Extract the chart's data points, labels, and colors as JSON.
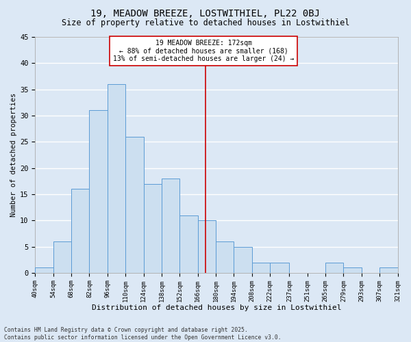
{
  "title": "19, MEADOW BREEZE, LOSTWITHIEL, PL22 0BJ",
  "subtitle": "Size of property relative to detached houses in Lostwithiel",
  "xlabel": "Distribution of detached houses by size in Lostwithiel",
  "ylabel": "Number of detached properties",
  "bar_values": [
    1,
    6,
    16,
    31,
    36,
    26,
    17,
    18,
    11,
    10,
    6,
    5,
    2,
    2,
    0,
    0,
    2,
    1,
    0,
    1
  ],
  "bin_labels": [
    "40sqm",
    "54sqm",
    "68sqm",
    "82sqm",
    "96sqm",
    "110sqm",
    "124sqm",
    "138sqm",
    "152sqm",
    "166sqm",
    "180sqm",
    "194sqm",
    "208sqm",
    "222sqm",
    "237sqm",
    "251sqm",
    "265sqm",
    "279sqm",
    "293sqm",
    "307sqm",
    "321sqm"
  ],
  "bin_edges": [
    40,
    54,
    68,
    82,
    96,
    110,
    124,
    138,
    152,
    166,
    180,
    194,
    208,
    222,
    237,
    251,
    265,
    279,
    293,
    307,
    321
  ],
  "bar_color": "#ccdff0",
  "bar_edge_color": "#5b9bd5",
  "background_color": "#dce8f5",
  "grid_color": "#ffffff",
  "vline_x": 172,
  "vline_color": "#cc0000",
  "annotation_text": "19 MEADOW BREEZE: 172sqm\n← 88% of detached houses are smaller (168)\n13% of semi-detached houses are larger (24) →",
  "annotation_box_color": "#ffffff",
  "annotation_box_edge": "#cc0000",
  "ylim": [
    0,
    45
  ],
  "yticks": [
    0,
    5,
    10,
    15,
    20,
    25,
    30,
    35,
    40,
    45
  ],
  "footer_line1": "Contains HM Land Registry data © Crown copyright and database right 2025.",
  "footer_line2": "Contains public sector information licensed under the Open Government Licence v3.0.",
  "title_fontsize": 10,
  "subtitle_fontsize": 8.5,
  "axis_label_fontsize": 7.5,
  "tick_fontsize": 6.5,
  "annotation_fontsize": 7,
  "footer_fontsize": 5.8
}
